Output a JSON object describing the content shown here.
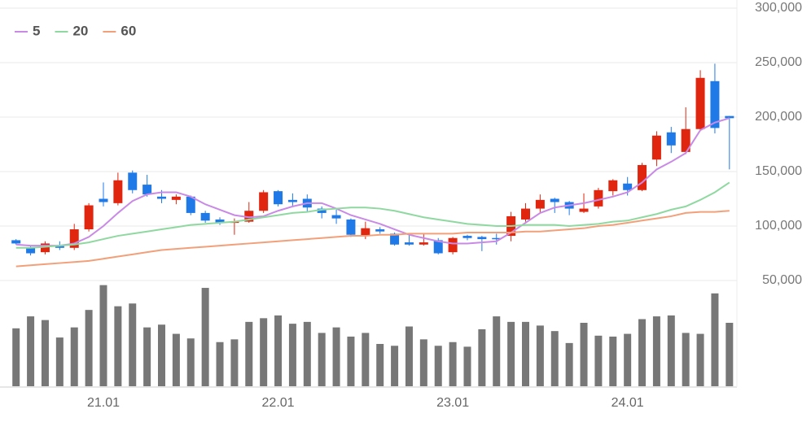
{
  "chart_data": {
    "type": "candlestick",
    "categories": [
      null,
      null,
      null,
      null,
      null,
      null,
      "21.01",
      null,
      null,
      null,
      null,
      null,
      null,
      null,
      null,
      null,
      null,
      null,
      "22.01",
      null,
      null,
      null,
      null,
      null,
      null,
      null,
      null,
      null,
      null,
      null,
      "23.01",
      null,
      null,
      null,
      null,
      null,
      null,
      null,
      null,
      null,
      null,
      null,
      "24.01",
      null,
      null,
      null,
      null,
      null,
      null,
      null
    ],
    "open": [
      87000,
      80000,
      76000,
      82000,
      80000,
      97000,
      125000,
      121000,
      149000,
      138000,
      127000,
      124000,
      127000,
      112000,
      106000,
      103000,
      104000,
      114000,
      132000,
      124000,
      125000,
      116000,
      110000,
      106000,
      91000,
      97000,
      93000,
      85000,
      83000,
      87000,
      76000,
      91000,
      90000,
      89000,
      91000,
      106000,
      116000,
      125000,
      122000,
      113000,
      118000,
      132000,
      139000,
      133000,
      161000,
      186000,
      168000,
      189000,
      233000,
      201000
    ],
    "high": [
      88000,
      82000,
      86000,
      86000,
      102000,
      121000,
      140000,
      149000,
      151000,
      147000,
      133000,
      129000,
      128000,
      114000,
      108000,
      107000,
      122000,
      133000,
      133000,
      130000,
      129000,
      118000,
      115000,
      107000,
      104000,
      99000,
      94000,
      93000,
      93000,
      89000,
      90000,
      92000,
      91000,
      93000,
      113000,
      121000,
      129000,
      126000,
      123000,
      130000,
      135000,
      143000,
      145000,
      158000,
      187000,
      191000,
      209000,
      243000,
      249000,
      201000
    ],
    "low": [
      83000,
      73000,
      74000,
      78000,
      78000,
      95000,
      118000,
      119000,
      130000,
      127000,
      121000,
      120000,
      110000,
      103000,
      101000,
      92000,
      103000,
      112000,
      118000,
      118000,
      113000,
      107000,
      102000,
      90000,
      88000,
      93000,
      82000,
      82000,
      82000,
      74000,
      74000,
      87000,
      77000,
      83000,
      86000,
      104000,
      112000,
      112000,
      110000,
      112000,
      116000,
      128000,
      128000,
      132000,
      155000,
      167000,
      166000,
      187000,
      185000,
      152000
    ],
    "close": [
      84000,
      75000,
      84000,
      80000,
      97000,
      119000,
      122000,
      142000,
      133000,
      129000,
      125000,
      127000,
      112000,
      105000,
      103000,
      104000,
      114000,
      131000,
      120000,
      122000,
      117000,
      112000,
      107000,
      92000,
      98000,
      95000,
      83000,
      83000,
      85000,
      75000,
      89000,
      89000,
      88000,
      88000,
      109000,
      116000,
      124000,
      122000,
      116000,
      116000,
      133000,
      142000,
      133000,
      156000,
      183000,
      174000,
      189000,
      236000,
      190000,
      199000
    ],
    "up_color": "#e0260f",
    "down_color": "#1f7ae8",
    "series": [
      {
        "name": "5",
        "color": "#c98ae6",
        "values": [
          83000,
          82000,
          82000,
          82000,
          84000,
          90000,
          100000,
          112000,
          123000,
          129000,
          131000,
          131000,
          127000,
          120000,
          115000,
          110000,
          108000,
          109000,
          114000,
          118000,
          121000,
          121000,
          116000,
          110000,
          106000,
          102000,
          97000,
          92000,
          89000,
          86000,
          84000,
          84000,
          85000,
          86000,
          94000,
          103000,
          112000,
          117000,
          119000,
          121000,
          124000,
          127000,
          131000,
          140000,
          152000,
          159000,
          167000,
          188000,
          195000,
          199000
        ]
      },
      {
        "name": "20",
        "color": "#8fd9a0",
        "values": [
          80000,
          80000,
          81000,
          82000,
          83000,
          85000,
          88000,
          91000,
          93000,
          95000,
          97000,
          99000,
          101000,
          102000,
          103000,
          104000,
          106000,
          108000,
          110000,
          112000,
          113000,
          115000,
          116000,
          117000,
          117000,
          116000,
          114000,
          111000,
          108000,
          106000,
          104000,
          102000,
          101000,
          100000,
          100000,
          101000,
          101000,
          101000,
          100000,
          101000,
          102000,
          104000,
          105000,
          108000,
          111000,
          115000,
          118000,
          124000,
          131000,
          140000
        ]
      },
      {
        "name": "60",
        "color": "#f2a07a",
        "values": [
          63000,
          64000,
          65000,
          66000,
          67000,
          68000,
          70000,
          72000,
          74000,
          76000,
          78000,
          79000,
          80000,
          81000,
          82000,
          83000,
          84000,
          85000,
          86000,
          87000,
          88000,
          89000,
          90000,
          91000,
          91000,
          92000,
          92000,
          93000,
          93000,
          93000,
          93000,
          94000,
          94000,
          94000,
          94000,
          95000,
          95000,
          96000,
          97000,
          98000,
          100000,
          101000,
          103000,
          105000,
          107000,
          109000,
          112000,
          113000,
          113000,
          114000
        ]
      }
    ],
    "volume": {
      "color": "#777777",
      "ylim": [
        0,
        115
      ],
      "values": [
        63,
        76,
        72,
        53,
        64,
        83,
        110,
        87,
        90,
        64,
        67,
        57,
        52,
        107,
        48,
        51,
        70,
        74,
        77,
        68,
        70,
        58,
        64,
        54,
        58,
        46,
        44,
        65,
        51,
        44,
        48,
        43,
        62,
        76,
        70,
        70,
        66,
        60,
        47,
        69,
        55,
        54,
        57,
        73,
        76,
        77,
        58,
        57,
        101,
        69
      ]
    },
    "ylim": [
      50000,
      300000
    ],
    "yticks": [
      {
        "value": 50000,
        "label": "50,000"
      },
      {
        "value": 100000,
        "label": "100,000"
      },
      {
        "value": 150000,
        "label": "150,000"
      },
      {
        "value": 200000,
        "label": "200,000"
      },
      {
        "value": 250000,
        "label": "250,000"
      },
      {
        "value": 300000,
        "label": "300,000"
      }
    ],
    "grid": true
  }
}
